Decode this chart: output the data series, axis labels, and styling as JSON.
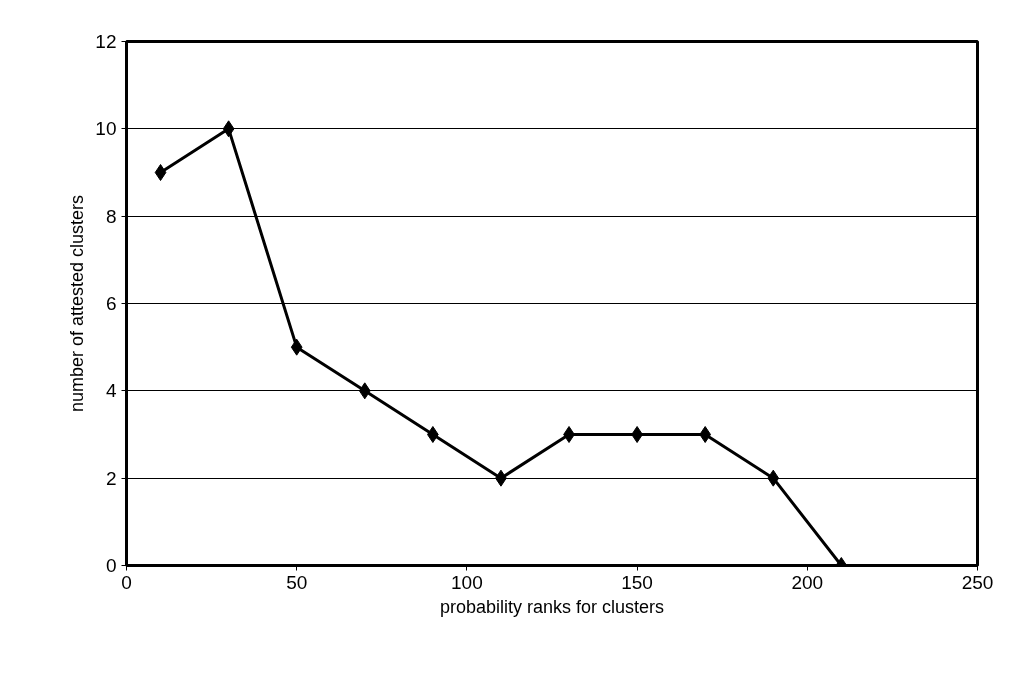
{
  "chart_data": {
    "type": "line",
    "xlabel": "probability ranks for clusters",
    "ylabel": "number of attested clusters",
    "x": [
      10,
      30,
      50,
      70,
      90,
      110,
      130,
      150,
      170,
      190,
      210
    ],
    "series": [
      {
        "color": "#000000",
        "values": [
          9,
          10,
          5,
          4,
          3,
          2,
          3,
          3,
          3,
          2,
          0
        ]
      }
    ],
    "xlim": [
      0,
      250
    ],
    "ylim": [
      0,
      12
    ],
    "xticks": [
      0,
      50,
      100,
      150,
      200,
      250
    ],
    "yticks": [
      0,
      2,
      4,
      6,
      8,
      10,
      12
    ],
    "grid": "y",
    "marker": "diamond",
    "line_style": "solid"
  }
}
